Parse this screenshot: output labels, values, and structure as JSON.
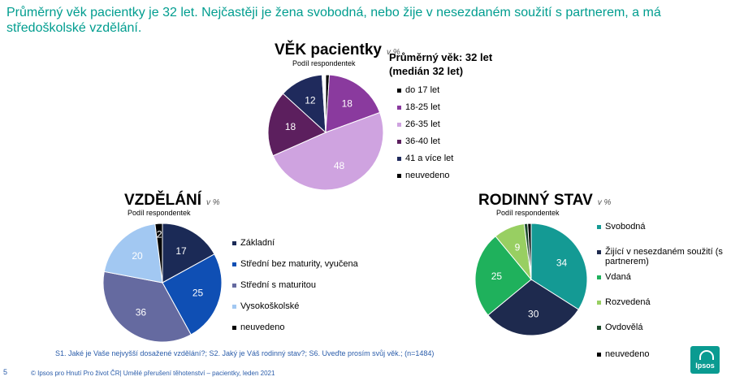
{
  "headline": "Průměrný věk pacientky je 32 let. Nejčastěji je žena svobodná, nebo žije v nesezdaném soužití s partnerem, a má středoškolské vzdělání.",
  "stat_line1": "Průměrný věk: 32 let",
  "stat_line2": "(medián 32 let)",
  "source_note": "S1. Jaké je Vaše nejvyšší dosažené vzdělání?; S2. Jaký je Váš rodinný stav?; S6. Uveďte prosím svůj věk.; (n=1484)",
  "footer": "© Ipsos pro Hnutí Pro život ČR| Umělé přerušení těhotenství – pacientky, leden 2021",
  "page_number": "5",
  "logo_text": "Ipsos",
  "chart_data": [
    {
      "type": "pie",
      "title": "VĚK pacientky",
      "unit_note": "v %",
      "subtitle": "Podíl respondentek",
      "legend_position": "right",
      "slices": [
        {
          "label": "do 17 let",
          "value": 1,
          "color": "#000000",
          "data_label": ""
        },
        {
          "label": "18-25 let",
          "value": 18,
          "color": "#8a3a9e",
          "data_label": "18"
        },
        {
          "label": "26-35 let",
          "value": 48,
          "color": "#cfa3e0",
          "data_label": "48"
        },
        {
          "label": "36-40 let",
          "value": 18,
          "color": "#5c1f5e",
          "data_label": "18"
        },
        {
          "label": "41 a více let",
          "value": 12,
          "color": "#1f2a5c",
          "data_label": "12"
        },
        {
          "label": "neuvedeno",
          "value": 1,
          "color": "#ffffff",
          "data_label": ""
        }
      ]
    },
    {
      "type": "pie",
      "title": "VZDĚLÁNÍ",
      "unit_note": "v %",
      "subtitle": "Podíl respondentek",
      "legend_position": "right",
      "slices": [
        {
          "label": "Základní",
          "value": 17,
          "color": "#1b2a56",
          "data_label": "17"
        },
        {
          "label": "Střední bez maturity, vyučena",
          "value": 25,
          "color": "#0f4fb4",
          "data_label": "25"
        },
        {
          "label": "Střední s maturitou",
          "value": 36,
          "color": "#656aa0",
          "data_label": "36"
        },
        {
          "label": "Vysokoškolské",
          "value": 20,
          "color": "#a2c8f2",
          "data_label": "20"
        },
        {
          "label": "neuvedeno",
          "value": 2,
          "color": "#000000",
          "data_label": "2"
        }
      ]
    },
    {
      "type": "pie",
      "title": "RODINNÝ STAV",
      "unit_note": "v %",
      "subtitle": "Podíl respondentek",
      "legend_position": "right",
      "slices": [
        {
          "label": "Svobodná",
          "value": 34,
          "color": "#149a94",
          "data_label": "34"
        },
        {
          "label": "Žijící v nesezdaném soužití (s partnerem)",
          "value": 30,
          "color": "#1e2a4e",
          "data_label": "30"
        },
        {
          "label": "Vdaná",
          "value": 25,
          "color": "#1fb15c",
          "data_label": "25"
        },
        {
          "label": "Rozvedená",
          "value": 9,
          "color": "#98cf62",
          "data_label": "9"
        },
        {
          "label": "Ovdovělá",
          "value": 1,
          "color": "#1a4a2a",
          "data_label": ""
        },
        {
          "label": "neuvedeno",
          "value": 1,
          "color": "#000000",
          "data_label": ""
        }
      ]
    }
  ]
}
